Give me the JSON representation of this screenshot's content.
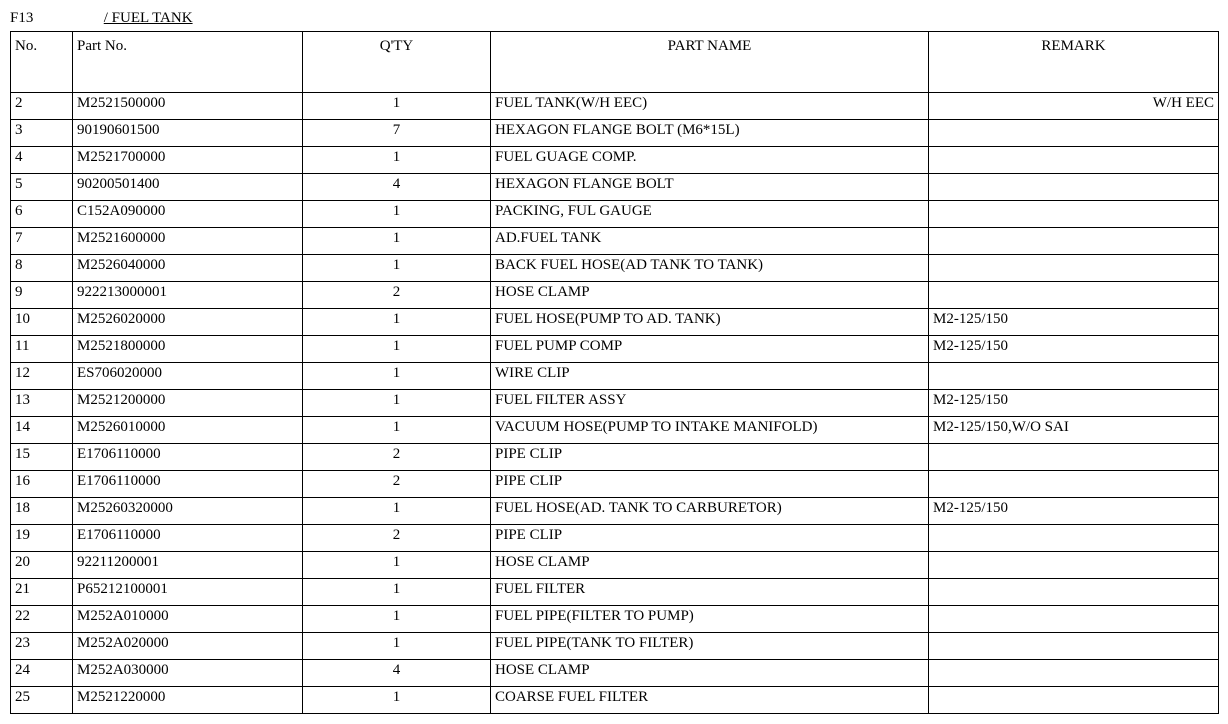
{
  "heading": {
    "section_code": "F13",
    "section_title": "/ FUEL TANK"
  },
  "table": {
    "columns": [
      {
        "label": "No.",
        "align": "left",
        "header_align": "left"
      },
      {
        "label": "Part  No.",
        "align": "left",
        "header_align": "left"
      },
      {
        "label": "Q'TY",
        "align": "center",
        "header_align": "center"
      },
      {
        "label": "PART  NAME",
        "align": "left",
        "header_align": "center"
      },
      {
        "label": "REMARK",
        "align": "left",
        "header_align": "center"
      }
    ],
    "rows": [
      {
        "no": "2",
        "part": "M2521500000",
        "qty": "1",
        "name": "FUEL TANK(W/H EEC)",
        "remark": "W/H EEC",
        "remark_align": "right"
      },
      {
        "no": "3",
        "part": "90190601500",
        "qty": "7",
        "name": "HEXAGON FLANGE BOLT (M6*15L)",
        "remark": ""
      },
      {
        "no": "4",
        "part": "M2521700000",
        "qty": "1",
        "name": "FUEL GUAGE COMP.",
        "remark": ""
      },
      {
        "no": "5",
        "part": "90200501400",
        "qty": "4",
        "name": "HEXAGON FLANGE BOLT",
        "remark": ""
      },
      {
        "no": "6",
        "part": "C152A090000",
        "qty": "1",
        "name": "PACKING, FUL GAUGE",
        "remark": ""
      },
      {
        "no": "7",
        "part": "M2521600000",
        "qty": "1",
        "name": "AD.FUEL TANK",
        "remark": ""
      },
      {
        "no": "8",
        "part": "M2526040000",
        "qty": "1",
        "name": "BACK FUEL HOSE(AD TANK TO TANK)",
        "remark": ""
      },
      {
        "no": "9",
        "part": "922213000001",
        "qty": "2",
        "name": "HOSE CLAMP",
        "remark": ""
      },
      {
        "no": "10",
        "part": "M2526020000",
        "qty": "1",
        "name": "FUEL HOSE(PUMP TO AD. TANK)",
        "remark": "M2-125/150"
      },
      {
        "no": "11",
        "part": "M2521800000",
        "qty": "1",
        "name": "FUEL PUMP COMP",
        "remark": "M2-125/150"
      },
      {
        "no": "12",
        "part": "ES706020000",
        "qty": "1",
        "name": "WIRE CLIP",
        "remark": ""
      },
      {
        "no": "13",
        "part": "M2521200000",
        "qty": "1",
        "name": "FUEL FILTER ASSY",
        "remark": "M2-125/150"
      },
      {
        "no": "14",
        "part": "M2526010000",
        "qty": "1",
        "name": "VACUUM HOSE(PUMP TO INTAKE MANIFOLD)",
        "remark": "M2-125/150,W/O SAI"
      },
      {
        "no": "15",
        "part": "E1706110000",
        "qty": "2",
        "name": "PIPE CLIP",
        "remark": ""
      },
      {
        "no": "16",
        "part": "E1706110000",
        "qty": "2",
        "name": "PIPE CLIP",
        "remark": ""
      },
      {
        "no": "18",
        "part": "M25260320000",
        "qty": "1",
        "name": "FUEL HOSE(AD. TANK TO CARBURETOR)",
        "remark": "M2-125/150"
      },
      {
        "no": "19",
        "part": "E1706110000",
        "qty": "2",
        "name": "PIPE CLIP",
        "remark": ""
      },
      {
        "no": "20",
        "part": "92211200001",
        "qty": "1",
        "name": "HOSE CLAMP",
        "remark": ""
      },
      {
        "no": "21",
        "part": "P65212100001",
        "qty": "1",
        "name": "FUEL FILTER",
        "remark": ""
      },
      {
        "no": "22",
        "part": "M252A010000",
        "qty": "1",
        "name": "FUEL PIPE(FILTER TO PUMP)",
        "remark": ""
      },
      {
        "no": "23",
        "part": "M252A020000",
        "qty": "1",
        "name": "FUEL PIPE(TANK TO FILTER)",
        "remark": ""
      },
      {
        "no": "24",
        "part": "M252A030000",
        "qty": "4",
        "name": "HOSE CLAMP",
        "remark": ""
      },
      {
        "no": "25",
        "part": "M2521220000",
        "qty": "1",
        "name": "COARSE FUEL FILTER",
        "remark": ""
      }
    ]
  }
}
